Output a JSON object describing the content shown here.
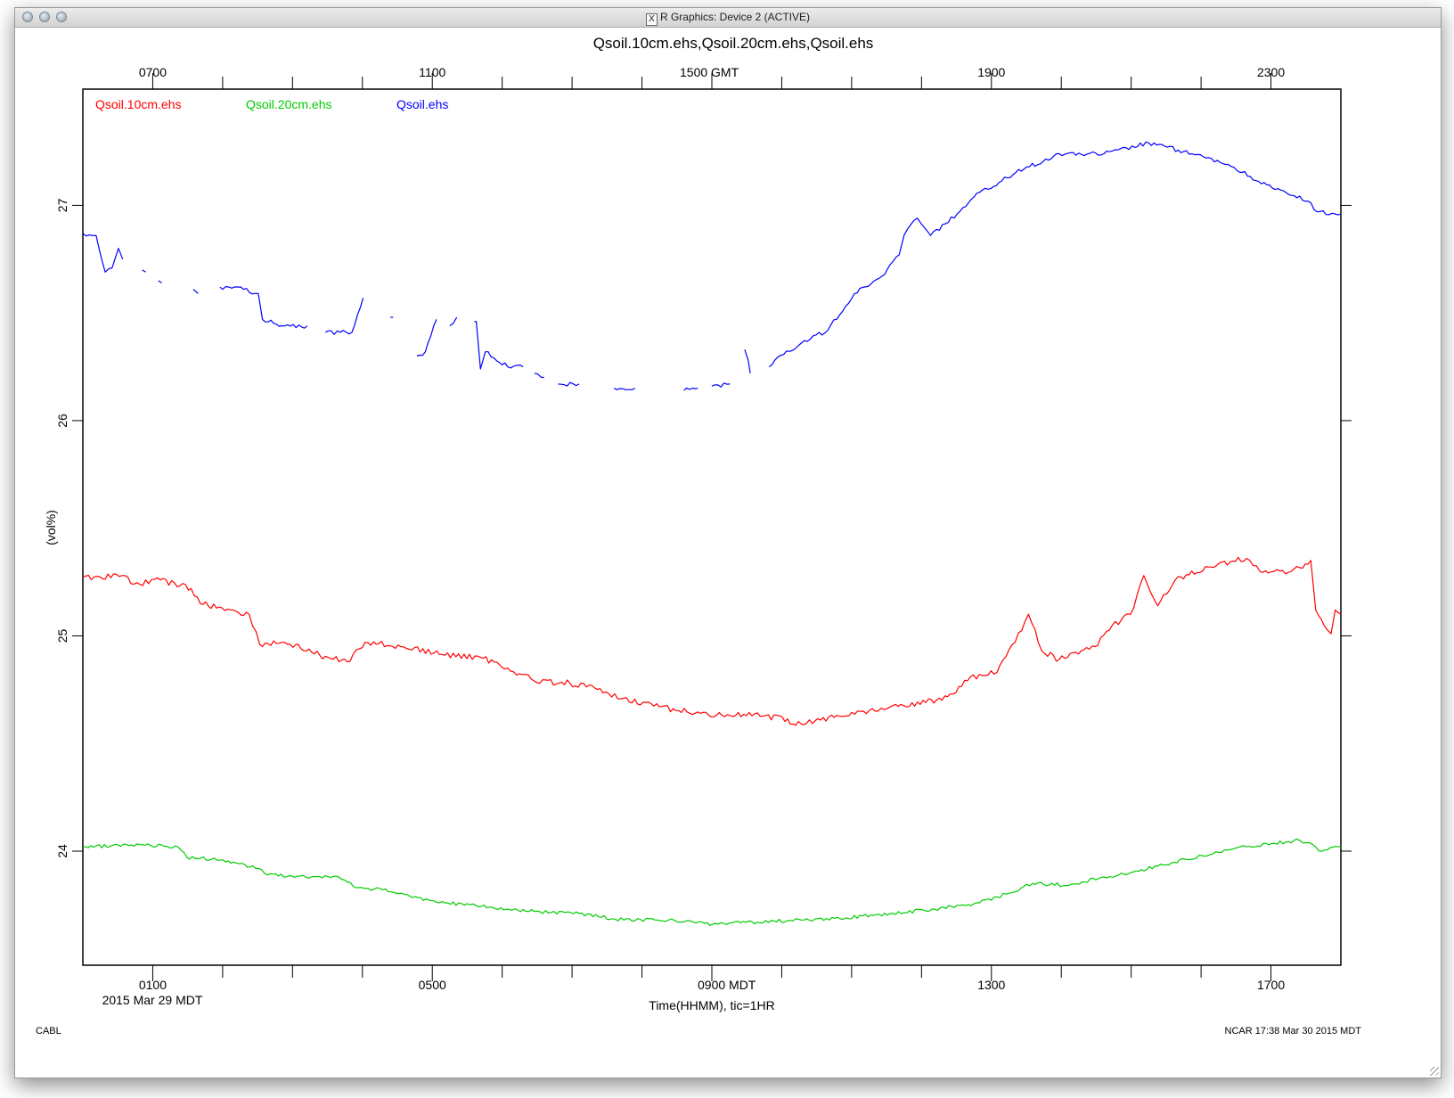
{
  "window": {
    "title": "R Graphics: Device 2 (ACTIVE)",
    "title_icon": "x11-icon"
  },
  "footer": {
    "left": "CABL",
    "right": "NCAR 17:38 Mar 30 2015 MDT"
  },
  "colors": {
    "red": "#ff0000",
    "green": "#00cc00",
    "blue": "#0000ff",
    "axis": "#000000"
  },
  "chart_data": {
    "type": "line",
    "title": "Qsoil.10cm.ehs,Qsoil.20cm.ehs,Qsoil.ehs",
    "xlabel": "Time(HHMM), tic=1HR",
    "ylabel": "(vol%)",
    "date_label": "2015 Mar 29 MDT",
    "xlim_hours_mdt": [
      0,
      18
    ],
    "ylim": [
      23.47,
      27.54
    ],
    "grid": false,
    "legend_placement": "top-left",
    "x_tick_interval_hours": 1,
    "bottom_axis": {
      "timezone": "MDT",
      "labels": [
        {
          "hour": 1,
          "text": "0100"
        },
        {
          "hour": 5,
          "text": "0500"
        },
        {
          "hour": 9,
          "text": "0900 MDT"
        },
        {
          "hour": 13,
          "text": "1300"
        },
        {
          "hour": 17,
          "text": "1700"
        }
      ]
    },
    "top_axis": {
      "timezone": "GMT",
      "offset_hours": 6,
      "labels": [
        {
          "hour": 1,
          "text": "0700"
        },
        {
          "hour": 5,
          "text": "1100"
        },
        {
          "hour": 9,
          "text": "1500 GMT"
        },
        {
          "hour": 13,
          "text": "1900"
        },
        {
          "hour": 17,
          "text": "2300"
        }
      ]
    },
    "y_ticks": [
      {
        "value": 24,
        "text": "24"
      },
      {
        "value": 25,
        "text": "25"
      },
      {
        "value": 26,
        "text": "26"
      },
      {
        "value": 27,
        "text": "27"
      }
    ],
    "series": [
      {
        "name": "Qsoil.10cm.ehs",
        "color": "#ff0000",
        "x": [
          0.0,
          0.6,
          0.73,
          1.11,
          1.55,
          1.68,
          2.38,
          2.53,
          2.89,
          3.39,
          3.78,
          4.04,
          4.55,
          5.18,
          5.69,
          6.08,
          6.46,
          6.97,
          7.48,
          7.74,
          8.25,
          8.76,
          9.26,
          9.77,
          10.28,
          10.79,
          11.17,
          11.55,
          12.06,
          12.45,
          12.7,
          13.08,
          13.34,
          13.53,
          13.72,
          13.97,
          14.48,
          14.73,
          14.99,
          15.18,
          15.38,
          15.63,
          16.14,
          16.65,
          16.84,
          17.29,
          17.57,
          17.64,
          17.8,
          17.86,
          17.92,
          18.0
        ],
        "values": [
          25.27,
          25.28,
          25.24,
          25.26,
          25.22,
          25.15,
          25.1,
          24.96,
          24.97,
          24.91,
          24.88,
          24.97,
          24.95,
          24.91,
          24.9,
          24.85,
          24.79,
          24.78,
          24.74,
          24.71,
          24.67,
          24.64,
          24.63,
          24.63,
          24.59,
          24.63,
          24.65,
          24.67,
          24.69,
          24.73,
          24.81,
          24.83,
          24.97,
          25.1,
          24.93,
          24.89,
          24.95,
          25.05,
          25.1,
          25.28,
          25.14,
          25.26,
          25.32,
          25.36,
          25.3,
          25.3,
          25.35,
          25.12,
          25.03,
          25.01,
          25.12,
          25.1
        ]
      },
      {
        "name": "Qsoil.20cm.ehs",
        "color": "#00cc00",
        "x": [
          0.0,
          0.85,
          1.36,
          1.49,
          2.0,
          2.51,
          2.64,
          3.27,
          3.66,
          3.91,
          4.29,
          4.68,
          5.18,
          5.82,
          6.46,
          7.1,
          7.74,
          8.38,
          9.01,
          9.65,
          10.28,
          10.92,
          11.55,
          12.19,
          12.83,
          13.21,
          13.59,
          14.1,
          14.61,
          14.99,
          15.38,
          16.01,
          16.65,
          17.41,
          17.6,
          17.69,
          18.0
        ],
        "values": [
          24.02,
          24.03,
          24.02,
          23.97,
          23.96,
          23.92,
          23.89,
          23.88,
          23.88,
          23.83,
          23.82,
          23.79,
          23.76,
          23.74,
          23.72,
          23.71,
          23.68,
          23.68,
          23.66,
          23.67,
          23.68,
          23.69,
          23.71,
          23.73,
          23.76,
          23.8,
          23.85,
          23.84,
          23.88,
          23.9,
          23.93,
          23.98,
          24.02,
          24.05,
          24.03,
          24.0,
          24.02
        ]
      },
      {
        "name": "Qsoil.ehs",
        "color": "#0000ff",
        "note_gaps": "series has data gaps between ~0.6 h and ~9.6 h",
        "segments": [
          {
            "x": [
              0.0,
              0.19,
              0.32,
              0.42,
              0.51,
              0.57
            ],
            "values": [
              26.87,
              26.86,
              26.69,
              26.71,
              26.8,
              26.75
            ]
          },
          {
            "x": [
              0.85,
              0.9
            ],
            "values": [
              26.7,
              26.69
            ]
          },
          {
            "x": [
              1.08,
              1.13
            ],
            "values": [
              26.65,
              26.64
            ]
          },
          {
            "x": [
              1.58,
              1.65
            ],
            "values": [
              26.61,
              26.59
            ]
          },
          {
            "x": [
              1.96,
              2.3,
              2.51,
              2.57,
              2.89,
              3.21
            ],
            "values": [
              26.62,
              26.61,
              26.59,
              26.47,
              26.44,
              26.44
            ]
          },
          {
            "x": [
              3.47,
              3.85,
              4.01
            ],
            "values": [
              26.41,
              26.41,
              26.57
            ]
          },
          {
            "x": [
              4.4,
              4.44
            ],
            "values": [
              26.48,
              26.48
            ]
          },
          {
            "x": [
              4.78,
              4.9,
              5.06
            ],
            "values": [
              26.3,
              26.32,
              26.47
            ]
          },
          {
            "x": [
              5.25,
              5.35
            ],
            "values": [
              26.44,
              26.48
            ]
          },
          {
            "x": [
              5.6,
              5.63,
              5.69,
              5.76,
              6.08,
              6.3
            ],
            "values": [
              26.46,
              26.46,
              26.24,
              26.32,
              26.25,
              26.25
            ]
          },
          {
            "x": [
              6.46,
              6.6
            ],
            "values": [
              26.22,
              26.2
            ]
          },
          {
            "x": [
              6.8,
              7.1
            ],
            "values": [
              26.17,
              26.17
            ]
          },
          {
            "x": [
              7.6,
              7.9
            ],
            "values": [
              26.15,
              26.15
            ]
          },
          {
            "x": [
              8.6,
              8.8
            ],
            "values": [
              26.14,
              26.15
            ]
          },
          {
            "x": [
              9.0,
              9.26
            ],
            "values": [
              26.16,
              26.17
            ]
          },
          {
            "x": [
              9.47,
              9.52,
              9.55
            ],
            "values": [
              26.33,
              26.28,
              26.22
            ]
          },
          {
            "x": [
              9.82,
              9.9,
              10.28,
              10.66,
              11.04,
              11.43,
              11.68,
              11.75,
              11.94,
              12.13,
              12.51,
              12.83,
              13.47,
              13.97,
              14.61,
              15.25,
              15.75,
              16.39,
              17.02,
              17.53,
              17.66,
              18.0
            ],
            "values": [
              26.25,
              26.28,
              26.36,
              26.42,
              26.59,
              26.67,
              26.77,
              26.86,
              26.94,
              26.86,
              26.96,
              27.06,
              27.17,
              27.24,
              27.24,
              27.29,
              27.25,
              27.19,
              27.08,
              27.02,
              26.97,
              26.96
            ]
          }
        ]
      }
    ]
  }
}
